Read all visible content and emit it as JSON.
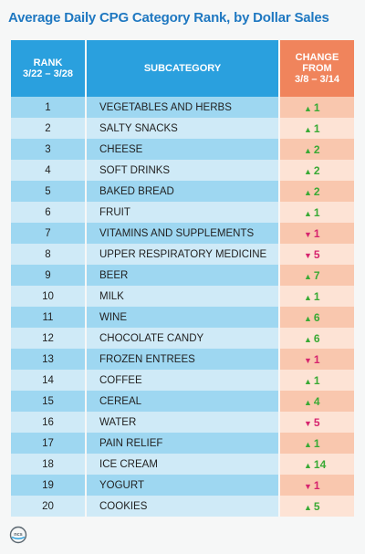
{
  "title": "Average Daily CPG Category Rank, by Dollar Sales",
  "headers": {
    "rank": "RANK\n3/22 – 3/28",
    "subcategory": "SUBCATEGORY",
    "change": "CHANGE\nFROM\n3/8 – 3/14"
  },
  "rows": [
    {
      "rank": "1",
      "subcategory": "VEGETABLES AND HERBS",
      "direction": "up",
      "change": "1"
    },
    {
      "rank": "2",
      "subcategory": "SALTY SNACKS",
      "direction": "up",
      "change": "1"
    },
    {
      "rank": "3",
      "subcategory": "CHEESE",
      "direction": "up",
      "change": "2"
    },
    {
      "rank": "4",
      "subcategory": "SOFT DRINKS",
      "direction": "up",
      "change": "2"
    },
    {
      "rank": "5",
      "subcategory": "BAKED BREAD",
      "direction": "up",
      "change": "2"
    },
    {
      "rank": "6",
      "subcategory": "FRUIT",
      "direction": "up",
      "change": "1"
    },
    {
      "rank": "7",
      "subcategory": "VITAMINS AND SUPPLEMENTS",
      "direction": "down",
      "change": "1"
    },
    {
      "rank": "8",
      "subcategory": "UPPER RESPIRATORY MEDICINE",
      "direction": "down",
      "change": "5"
    },
    {
      "rank": "9",
      "subcategory": "BEER",
      "direction": "up",
      "change": "7"
    },
    {
      "rank": "10",
      "subcategory": "MILK",
      "direction": "up",
      "change": "1"
    },
    {
      "rank": "11",
      "subcategory": "WINE",
      "direction": "up",
      "change": "6"
    },
    {
      "rank": "12",
      "subcategory": "CHOCOLATE CANDY",
      "direction": "up",
      "change": "6"
    },
    {
      "rank": "13",
      "subcategory": "FROZEN ENTREES",
      "direction": "down",
      "change": "1"
    },
    {
      "rank": "14",
      "subcategory": "COFFEE",
      "direction": "up",
      "change": "1"
    },
    {
      "rank": "15",
      "subcategory": "CEREAL",
      "direction": "up",
      "change": "4"
    },
    {
      "rank": "16",
      "subcategory": "WATER",
      "direction": "down",
      "change": "5"
    },
    {
      "rank": "17",
      "subcategory": "PAIN RELIEF",
      "direction": "up",
      "change": "1"
    },
    {
      "rank": "18",
      "subcategory": "ICE CREAM",
      "direction": "up",
      "change": "14"
    },
    {
      "rank": "19",
      "subcategory": "YOGURT",
      "direction": "down",
      "change": "1"
    },
    {
      "rank": "20",
      "subcategory": "COOKIES",
      "direction": "up",
      "change": "5"
    }
  ],
  "colors": {
    "title": "#1f78c1",
    "header_blue": "#2aa0de",
    "header_orange": "#f0845c",
    "up": "#3aaa35",
    "down": "#d6246e"
  },
  "icons": {
    "up": "triangle-up-icon",
    "down": "triangle-down-icon"
  },
  "logo": {
    "text": "ncs"
  }
}
